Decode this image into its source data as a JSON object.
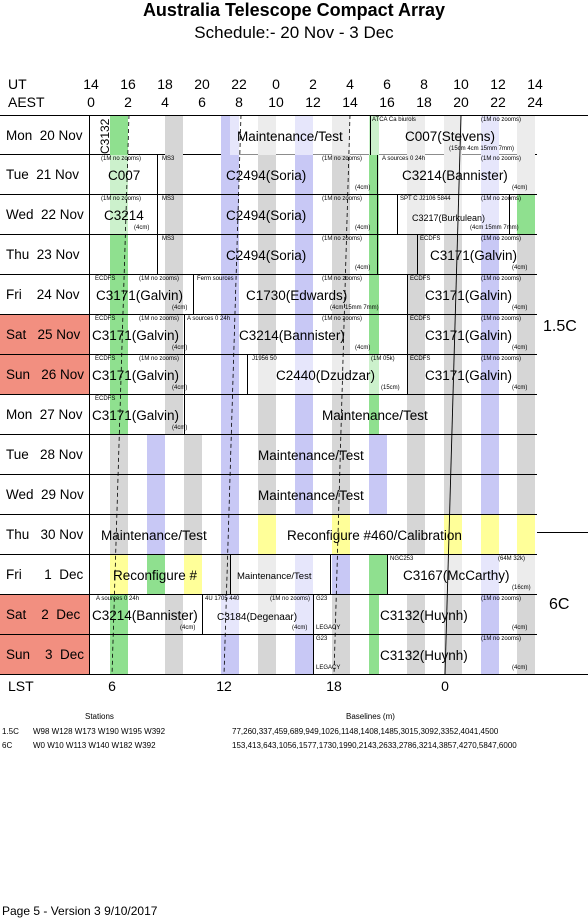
{
  "title": "Australia Telescope Compact Array",
  "subtitle": "Schedule:- 20 Nov - 3  Dec",
  "axes": {
    "ut_label": "UT",
    "aest_label": "AEST",
    "lst_label": "LST",
    "ut_ticks": [
      "14",
      "16",
      "18",
      "20",
      "22",
      "0",
      "2",
      "4",
      "6",
      "8",
      "10",
      "12",
      "14"
    ],
    "aest_ticks": [
      "0",
      "2",
      "4",
      "6",
      "8",
      "10",
      "12",
      "14",
      "16",
      "18",
      "20",
      "22",
      "24"
    ],
    "lst_ticks": [
      "6",
      "12",
      "18",
      "0"
    ]
  },
  "colors": {
    "weekend": "#f28f80",
    "green": "#8fe08f",
    "blue": "#c8c8f5",
    "gray": "#d6d6d6",
    "yellow": "#ffff99"
  },
  "days": [
    {
      "label": "Mon  20 Nov",
      "weekend": false,
      "stripes": "a",
      "labels": [
        {
          "t": "C3132",
          "x": 97,
          "y": 8,
          "rot": true
        },
        {
          "t": "Maintenance/Test",
          "x": 237,
          "y": 13
        },
        {
          "t": "C007(Stevens)",
          "x": 405,
          "y": 13
        }
      ],
      "small": [
        {
          "t": "ATCA Ca biurols",
          "x": 372,
          "y": 1
        },
        {
          "t": "(1M no zooms)",
          "x": 481,
          "y": 1
        },
        {
          "t": "(15cm 4cm 15mm 7mm)",
          "x": 449,
          "y": 30
        }
      ],
      "bars": [
        {
          "x": 230,
          "w": 140,
          "c": "white"
        },
        {
          "x": 370,
          "w": 165,
          "c": "white"
        }
      ],
      "lines": [
        370
      ]
    },
    {
      "label": "Tue  21 Nov",
      "weekend": false,
      "stripes": "a",
      "labels": [
        {
          "t": "C007",
          "x": 108,
          "y": 13
        },
        {
          "t": "C2494(Soria)",
          "x": 226,
          "y": 13
        },
        {
          "t": "C3214(Bannister)",
          "x": 402,
          "y": 13
        }
      ],
      "small": [
        {
          "t": "(1M no zooms)",
          "x": 101,
          "y": 1
        },
        {
          "t": "MS3",
          "x": 162,
          "y": 1
        },
        {
          "t": "(1M no zooms)",
          "x": 322,
          "y": 1
        },
        {
          "t": "A  sources 0 24h",
          "x": 382,
          "y": 1
        },
        {
          "t": "(1M no zooms)",
          "x": 481,
          "y": 1
        },
        {
          "t": "(4cm)",
          "x": 355,
          "y": 30
        },
        {
          "t": "(4cm)",
          "x": 512,
          "y": 30
        }
      ],
      "bars": [
        {
          "x": 92,
          "w": 65,
          "c": "white"
        },
        {
          "x": 157,
          "w": 220,
          "c": "stripe"
        },
        {
          "x": 377,
          "w": 158,
          "c": "white"
        }
      ],
      "lines": [
        157,
        377
      ]
    },
    {
      "label": "Wed  22 Nov",
      "weekend": false,
      "stripes": "a",
      "labels": [
        {
          "t": "C3214",
          "x": 104,
          "y": 13
        },
        {
          "t": "C2494(Soria)",
          "x": 226,
          "y": 13
        },
        {
          "t": "C3217(Burkulean)",
          "x": 412,
          "y": 15,
          "s": 9
        }
      ],
      "small": [
        {
          "t": "(1M no zooms)",
          "x": 101,
          "y": 1
        },
        {
          "t": "MS3",
          "x": 162,
          "y": 1
        },
        {
          "t": "(1M no zooms)",
          "x": 322,
          "y": 1
        },
        {
          "t": "SPT C  J2106 5844",
          "x": 400,
          "y": 1
        },
        {
          "t": "(1M no zooms)",
          "x": 481,
          "y": 1
        },
        {
          "t": "(4cm)",
          "x": 134,
          "y": 30
        },
        {
          "t": "(4cm)",
          "x": 355,
          "y": 30
        },
        {
          "t": "(4cm 15mm 7mm)",
          "x": 470,
          "y": 30
        }
      ],
      "bars": [
        {
          "x": 92,
          "w": 65,
          "c": "white"
        },
        {
          "x": 157,
          "w": 220,
          "c": "stripe"
        },
        {
          "x": 397,
          "w": 112,
          "c": "white"
        },
        {
          "x": 517,
          "w": 18,
          "c": "green"
        }
      ],
      "lines": [
        157,
        377,
        397,
        509
      ]
    },
    {
      "label": "Thu  23 Nov",
      "weekend": false,
      "stripes": "a",
      "labels": [
        {
          "t": "C2494(Soria)",
          "x": 226,
          "y": 13
        },
        {
          "t": "C3171(Galvin)",
          "x": 430,
          "y": 13
        }
      ],
      "small": [
        {
          "t": "MS3",
          "x": 162,
          "y": 1
        },
        {
          "t": "(1M no zooms)",
          "x": 322,
          "y": 1
        },
        {
          "t": "ECDFS",
          "x": 420,
          "y": 1
        },
        {
          "t": "(1M no zooms)",
          "x": 481,
          "y": 1
        },
        {
          "t": "(4cm)",
          "x": 355,
          "y": 30
        },
        {
          "t": "(4cm)",
          "x": 512,
          "y": 30
        }
      ],
      "bars": [
        {
          "x": 157,
          "w": 220,
          "c": "stripe"
        }
      ],
      "lines": [
        157,
        377,
        417
      ]
    },
    {
      "label": "Fri    24 Nov",
      "weekend": false,
      "stripes": "a",
      "labels": [
        {
          "t": "C3171(Galvin)",
          "x": 96,
          "y": 13
        },
        {
          "t": "C1730(Edwards)",
          "x": 246,
          "y": 13
        },
        {
          "t": "C3171(Galvin)",
          "x": 425,
          "y": 13
        }
      ],
      "small": [
        {
          "t": "ECDFS",
          "x": 95,
          "y": 1
        },
        {
          "t": "(1M no zooms)",
          "x": 139,
          "y": 1
        },
        {
          "t": "Ferm  sources",
          "x": 197,
          "y": 1
        },
        {
          "t": "(1M no zooms)",
          "x": 322,
          "y": 1
        },
        {
          "t": "ECDFS",
          "x": 410,
          "y": 1
        },
        {
          "t": "(1M no zooms)",
          "x": 481,
          "y": 1
        },
        {
          "t": "(4cm)",
          "x": 172,
          "y": 30
        },
        {
          "t": "(4cm 15mm 7mm)",
          "x": 330,
          "y": 30
        },
        {
          "t": "(4cm)",
          "x": 512,
          "y": 30
        }
      ],
      "bars": [
        {
          "x": 92,
          "w": 101,
          "c": "stripe"
        },
        {
          "x": 193,
          "w": 214,
          "c": "stripe"
        }
      ],
      "lines": [
        193,
        407
      ]
    },
    {
      "label": "Sat   25 Nov",
      "weekend": true,
      "stripes": "a",
      "labels": [
        {
          "t": "C3171(Galvin)",
          "x": 92,
          "y": 13
        },
        {
          "t": "C3214(Bannister)",
          "x": 239,
          "y": 13
        },
        {
          "t": "C3171(Galvin)",
          "x": 425,
          "y": 13
        }
      ],
      "small": [
        {
          "t": "ECDFS",
          "x": 95,
          "y": 1
        },
        {
          "t": "(1M no zooms)",
          "x": 139,
          "y": 1
        },
        {
          "t": "A  sources 0 24h",
          "x": 187,
          "y": 1
        },
        {
          "t": "(1M no zooms)",
          "x": 322,
          "y": 1
        },
        {
          "t": "ECDFS",
          "x": 410,
          "y": 1
        },
        {
          "t": "(1M no zooms)",
          "x": 481,
          "y": 1
        },
        {
          "t": "(4cm)",
          "x": 172,
          "y": 30
        },
        {
          "t": "(4cm)",
          "x": 355,
          "y": 30
        },
        {
          "t": "(4cm)",
          "x": 512,
          "y": 30
        }
      ],
      "bars": [],
      "lines": [
        184,
        407
      ]
    },
    {
      "label": "Sun   26 Nov",
      "weekend": true,
      "stripes": "a",
      "labels": [
        {
          "t": "C3171(Galvin)",
          "x": 92,
          "y": 13
        },
        {
          "t": "C2440(Dzudzar)",
          "x": 276,
          "y": 13
        },
        {
          "t": "C3171(Galvin)",
          "x": 425,
          "y": 13
        }
      ],
      "small": [
        {
          "t": "ECDFS",
          "x": 95,
          "y": 1
        },
        {
          "t": "(1M no zooms)",
          "x": 139,
          "y": 1
        },
        {
          "t": "J1956 50",
          "x": 252,
          "y": 1
        },
        {
          "t": "(1M 05k)",
          "x": 371,
          "y": 1
        },
        {
          "t": "ECDFS",
          "x": 410,
          "y": 1
        },
        {
          "t": "(1M no zooms)",
          "x": 481,
          "y": 1
        },
        {
          "t": "(4cm)",
          "x": 172,
          "y": 30
        },
        {
          "t": "(15cm)",
          "x": 381,
          "y": 30
        },
        {
          "t": "(4cm)",
          "x": 512,
          "y": 30
        }
      ],
      "bars": [
        {
          "x": 247,
          "w": 160,
          "c": "white"
        }
      ],
      "lines": [
        184,
        247,
        407
      ]
    },
    {
      "label": "Mon  27 Nov",
      "weekend": false,
      "stripes": "a",
      "labels": [
        {
          "t": "C3171(Galvin)",
          "x": 92,
          "y": 13
        },
        {
          "t": "Maintenance/Test",
          "x": 322,
          "y": 13
        }
      ],
      "small": [
        {
          "t": "ECDFS",
          "x": 95,
          "y": 1
        },
        {
          "t": "(4cm)",
          "x": 172,
          "y": 30
        }
      ],
      "bars": [],
      "lines": [
        184
      ]
    },
    {
      "label": "Tue   28 Nov",
      "weekend": false,
      "stripes": "b",
      "labels": [
        {
          "t": "Maintenance/Test",
          "x": 258,
          "y": 13
        }
      ],
      "small": [],
      "bars": [],
      "lines": []
    },
    {
      "label": "Wed  29 Nov",
      "weekend": false,
      "stripes": "b",
      "labels": [
        {
          "t": "Maintenance/Test",
          "x": 258,
          "y": 13
        }
      ],
      "small": [],
      "bars": [],
      "lines": []
    },
    {
      "label": "Thu   30 Nov",
      "weekend": false,
      "stripes": "c",
      "labels": [
        {
          "t": "Maintenance/Test",
          "x": 101,
          "y": 13
        },
        {
          "t": "Reconfigure #460/Calibration",
          "x": 287,
          "y": 13
        }
      ],
      "small": [],
      "bars": [],
      "lines": []
    },
    {
      "label": "Fri      1  Dec",
      "weekend": false,
      "stripes": "d",
      "labels": [
        {
          "t": "Reconfigure #",
          "x": 113,
          "y": 13
        },
        {
          "t": "Maintenance/Test",
          "x": 237,
          "y": 14,
          "s": 9.5
        },
        {
          "t": "C3167(McCarthy)",
          "x": 403,
          "y": 13
        }
      ],
      "small": [
        {
          "t": "NGC253",
          "x": 390,
          "y": 1
        },
        {
          "t": "(64M 32k)",
          "x": 498,
          "y": 1
        },
        {
          "t": "(16cm)",
          "x": 512,
          "y": 30
        }
      ],
      "bars": [
        {
          "x": 230,
          "w": 100,
          "c": "white"
        },
        {
          "x": 387,
          "w": 148,
          "c": "white"
        }
      ],
      "lines": [
        230,
        330,
        387
      ]
    },
    {
      "label": "Sat    2  Dec",
      "weekend": true,
      "stripes": "a",
      "labels": [
        {
          "t": "C3214(Bannister)",
          "x": 92,
          "y": 13
        },
        {
          "t": "C3184(Degenaar)",
          "x": 217,
          "y": 15,
          "s": 10
        },
        {
          "t": "C3132(Huynh)",
          "x": 380,
          "y": 13
        }
      ],
      "small": [
        {
          "t": "A  sources 0 24h",
          "x": 96,
          "y": 1
        },
        {
          "t": "4U 1705 440",
          "x": 205,
          "y": 1
        },
        {
          "t": "(1M no zooms)",
          "x": 270,
          "y": 1
        },
        {
          "t": "G23",
          "x": 316,
          "y": 1
        },
        {
          "t": "(1M no zooms)",
          "x": 481,
          "y": 1
        },
        {
          "t": "(4cm)",
          "x": 180,
          "y": 30
        },
        {
          "t": "(4cm)",
          "x": 292,
          "y": 30
        },
        {
          "t": "LEGACY",
          "x": 316,
          "y": 30
        },
        {
          "t": "(4cm)",
          "x": 512,
          "y": 30
        }
      ],
      "bars": [
        {
          "x": 202,
          "w": 111,
          "c": "white"
        }
      ],
      "lines": [
        202,
        313
      ]
    },
    {
      "label": "Sun    3  Dec",
      "weekend": true,
      "stripes": "a",
      "labels": [
        {
          "t": "C3132(Huynh)",
          "x": 380,
          "y": 13
        }
      ],
      "small": [
        {
          "t": "G23",
          "x": 316,
          "y": 1
        },
        {
          "t": "(1M no zooms)",
          "x": 481,
          "y": 1
        },
        {
          "t": "LEGACY",
          "x": 316,
          "y": 30
        },
        {
          "t": "(4cm)",
          "x": 512,
          "y": 30
        }
      ],
      "bars": [],
      "lines": [
        313
      ]
    }
  ],
  "configs": [
    {
      "label": "1.5C"
    },
    {
      "label": "6C"
    }
  ],
  "stations_header": "Stations",
  "baselines_header": "Baselines (m)",
  "config_table": [
    {
      "name": "1.5C",
      "stations": "W98 W128 W173 W190 W195 W392",
      "baselines": "77,260,337,459,689,949,1026,1148,1408,1485,3015,3092,3352,4041,4500"
    },
    {
      "name": "6C",
      "stations": "W0 W10 W113 W140 W182 W392",
      "baselines": "153,413,643,1056,1577,1730,1990,2143,2633,2786,3214,3857,4270,5847,6000"
    }
  ],
  "footer": "Page 5 - Version 3  9/10/2017"
}
